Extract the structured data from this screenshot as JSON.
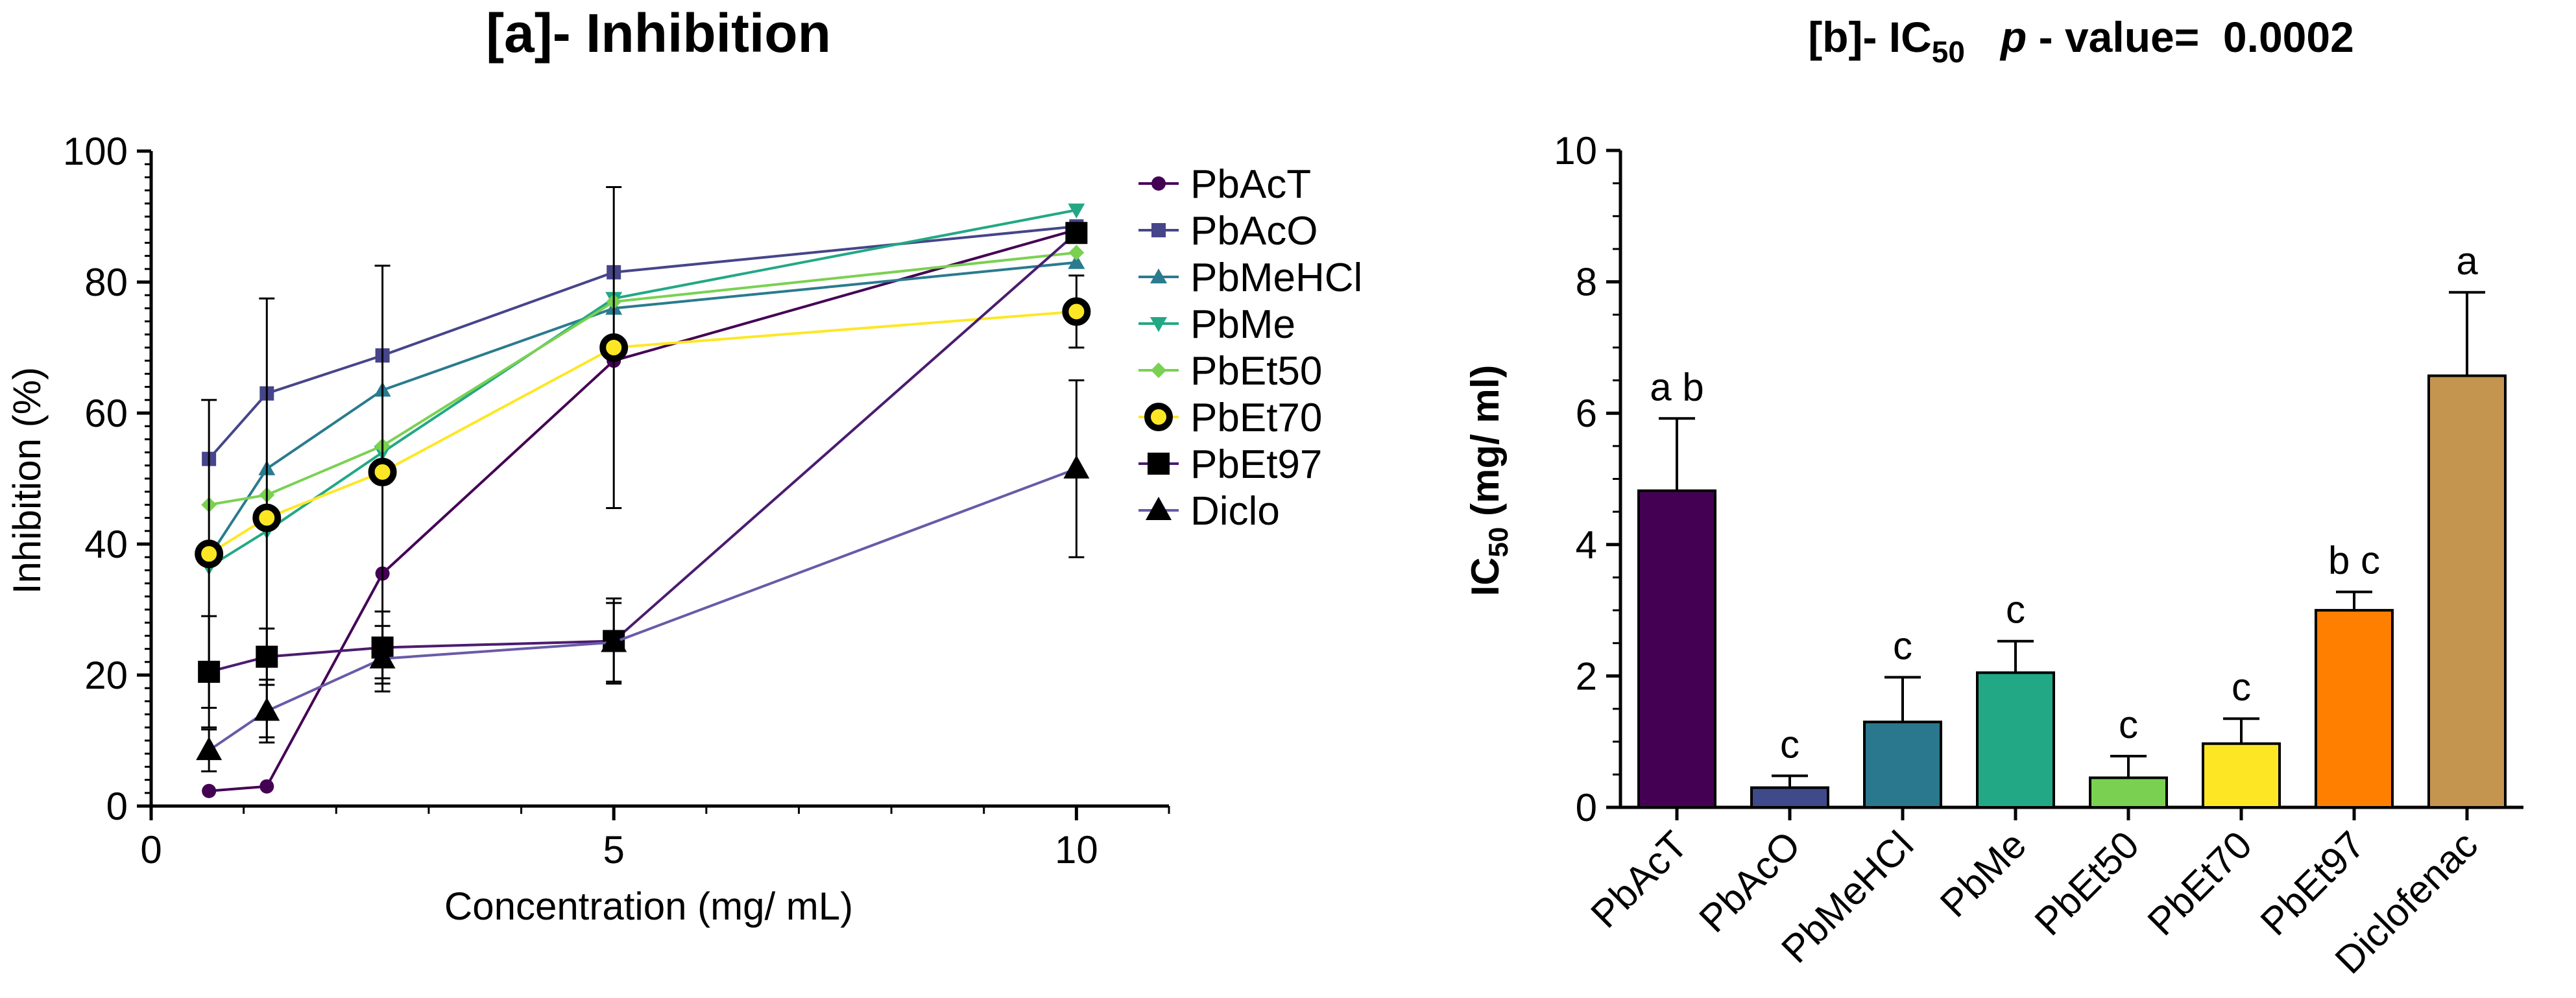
{
  "chart_data": [
    {
      "type": "line",
      "title": "[a]- Inhibition",
      "xlabel": "Concentration (mg/ mL)",
      "ylabel": "Inhibition (%)",
      "xlim": [
        0,
        11
      ],
      "ylim": [
        0,
        100
      ],
      "x_ticks": [
        "0",
        "5",
        "10"
      ],
      "y_ticks": [
        "0",
        "20",
        "40",
        "60",
        "80",
        "100"
      ],
      "x": [
        0.625,
        1.25,
        2.5,
        5,
        10
      ],
      "series": [
        {
          "name": "PbAcT",
          "color": "#440154",
          "marker": "circle-small",
          "values": [
            2.3,
            3.0,
            35.5,
            68.0,
            88.0
          ],
          "errors": [
            0,
            0,
            0,
            0,
            0
          ]
        },
        {
          "name": "PbAcO",
          "color": "#46458a",
          "marker": "square-small",
          "values": [
            53.0,
            63.0,
            68.8,
            81.5,
            88.5
          ],
          "errors": [
            0,
            0,
            0,
            0,
            0
          ]
        },
        {
          "name": "PbMeHCl",
          "color": "#2a7b8e",
          "marker": "triangle-small",
          "values": [
            38.0,
            51.5,
            63.5,
            76.0,
            83.0
          ],
          "errors": [
            0,
            0,
            0,
            0,
            0
          ]
        },
        {
          "name": "PbMe",
          "color": "#22a884",
          "marker": "triangle-down-small",
          "values": [
            36.5,
            42.0,
            54.0,
            77.5,
            91.0
          ],
          "errors": [
            0,
            0,
            0,
            0,
            0
          ]
        },
        {
          "name": "PbEt50",
          "color": "#7ad151",
          "marker": "diamond-small",
          "values": [
            46.0,
            47.5,
            55.0,
            77.0,
            84.5
          ],
          "errors": [
            0,
            0,
            0,
            0,
            0
          ]
        },
        {
          "name": "PbEt70",
          "color": "#fde725",
          "marker": "ring",
          "values": [
            38.5,
            44.0,
            51.0,
            70.0,
            75.5
          ],
          "errors": [
            23.5,
            33.5,
            31.5,
            24.5,
            5.5
          ]
        },
        {
          "name": "PbEt97",
          "color": "#4b1c6f",
          "marker": "square",
          "values": [
            20.5,
            22.8,
            24.2,
            25.2,
            87.5
          ],
          "errors": [
            8.5,
            4.3,
            5.5,
            6.5,
            1.5
          ]
        },
        {
          "name": "Diclo",
          "color": "#6a5aa8",
          "marker": "triangle",
          "values": [
            8.5,
            14.5,
            22.5,
            25.0,
            51.5
          ],
          "errors": [
            3.2,
            4.8,
            5.0,
            6.0,
            13.5
          ]
        }
      ]
    },
    {
      "type": "bar",
      "title": "[b]- IC",
      "title_sub": "50",
      "title_p": "p",
      "title_rest": " - value=  0.0002",
      "ylabel_main": "IC",
      "ylabel_sub": "50",
      "ylabel_unit": " (mg/ ml)",
      "ylim": [
        0,
        10
      ],
      "y_ticks": [
        "0",
        "2",
        "4",
        "6",
        "8",
        "10"
      ],
      "categories": [
        "PbAcT",
        "PbAcO",
        "PbMeHCl",
        "PbMe",
        "PbEt50",
        "PbEt70",
        "PbEt97",
        "Diclofenac"
      ],
      "values": [
        4.82,
        0.3,
        1.3,
        2.05,
        0.45,
        0.97,
        3.0,
        6.57
      ],
      "errors": [
        1.1,
        0.18,
        0.68,
        0.48,
        0.33,
        0.38,
        0.28,
        1.27
      ],
      "colors": [
        "#440154",
        "#3e4a89",
        "#2a788e",
        "#22a884",
        "#7ad151",
        "#fde725",
        "#ff8000",
        "#c4954e"
      ],
      "letters": [
        "a b",
        "c",
        "c",
        "c",
        "c",
        "c",
        "b c",
        "a"
      ]
    }
  ]
}
